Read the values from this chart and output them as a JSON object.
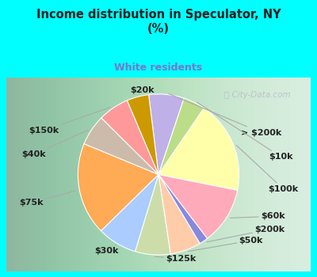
{
  "title": "Income distribution in Speculator, NY\n(%)",
  "subtitle": "White residents",
  "background_color": "#00ffff",
  "chart_bg_from": "#d4ede0",
  "chart_bg_to": "#e8f8f0",
  "title_color": "#222222",
  "subtitle_color": "#7777cc",
  "labels": [
    "> $200k",
    "$10k",
    "$100k",
    "$60k",
    "$200k",
    "$50k",
    "$125k",
    "$30k",
    "$75k",
    "$40k",
    "$150k",
    "$20k"
  ],
  "values": [
    8,
    5,
    21,
    13,
    2,
    7,
    8,
    9,
    21,
    7,
    7,
    5
  ],
  "colors": [
    "#c0b0e8",
    "#bbdd88",
    "#ffffaa",
    "#ffaabb",
    "#8888dd",
    "#ffccaa",
    "#ccddaa",
    "#aaccff",
    "#ffaa55",
    "#ccbbaa",
    "#ff9999",
    "#cc9900"
  ],
  "startangle": 97,
  "label_fontsize": 8,
  "wedge_linewidth": 0.8,
  "wedge_edgecolor": "#ffffff",
  "label_color": "#222222",
  "line_color": "#aaaaaa"
}
